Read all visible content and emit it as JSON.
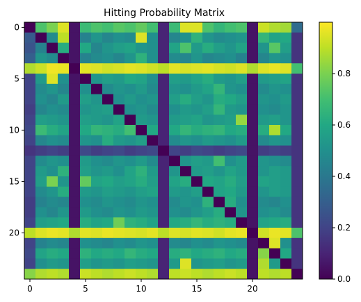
{
  "chart_data": {
    "type": "heatmap",
    "title": "Hitting Probability Matrix",
    "xlabel": "",
    "ylabel": "",
    "size": 25,
    "x_ticks": [
      0,
      5,
      10,
      15,
      20
    ],
    "y_ticks": [
      0,
      5,
      10,
      15,
      20
    ],
    "colormap": "viridis",
    "colorbar": {
      "min": 0.0,
      "max": 1.0,
      "ticks": [
        0.0,
        0.2,
        0.4,
        0.6,
        0.8
      ],
      "tick_labels": [
        "0.0",
        "0.2",
        "0.4",
        "0.6",
        "0.8"
      ]
    },
    "grid": false,
    "low_states": [
      4,
      12,
      20,
      24
    ],
    "high_states": [
      4,
      20,
      24
    ],
    "values": [
      [
        0.0,
        0.72,
        0.8,
        0.95,
        0.05,
        0.68,
        0.72,
        0.7,
        0.74,
        0.72,
        0.76,
        0.7,
        0.1,
        0.68,
        0.95,
        0.95,
        0.72,
        0.66,
        0.7,
        0.72,
        0.05,
        0.92,
        0.88,
        0.86,
        0.35
      ],
      [
        0.28,
        0.0,
        0.48,
        0.9,
        0.05,
        0.44,
        0.52,
        0.46,
        0.5,
        0.48,
        0.95,
        0.5,
        0.1,
        0.46,
        0.5,
        0.64,
        0.52,
        0.48,
        0.5,
        0.52,
        0.05,
        0.66,
        0.58,
        0.6,
        0.15
      ],
      [
        0.26,
        0.44,
        0.0,
        0.62,
        0.05,
        0.6,
        0.46,
        0.52,
        0.56,
        0.58,
        0.52,
        0.5,
        0.1,
        0.58,
        0.72,
        0.54,
        0.62,
        0.56,
        0.52,
        0.58,
        0.05,
        0.52,
        0.74,
        0.56,
        0.15
      ],
      [
        0.3,
        0.52,
        0.48,
        0.0,
        0.05,
        0.44,
        0.48,
        0.5,
        0.46,
        0.52,
        0.64,
        0.5,
        0.1,
        0.48,
        0.46,
        0.52,
        0.46,
        0.48,
        0.5,
        0.44,
        0.05,
        0.46,
        0.52,
        0.5,
        0.15
      ],
      [
        0.88,
        0.92,
        0.98,
        0.97,
        0.0,
        0.96,
        0.95,
        0.93,
        0.94,
        0.96,
        0.95,
        0.93,
        0.9,
        0.96,
        0.94,
        0.95,
        0.96,
        0.94,
        0.93,
        0.95,
        0.88,
        0.95,
        0.97,
        0.95,
        0.7
      ],
      [
        0.2,
        0.54,
        0.95,
        0.5,
        0.05,
        0.0,
        0.52,
        0.56,
        0.54,
        0.6,
        0.58,
        0.5,
        0.1,
        0.56,
        0.54,
        0.58,
        0.62,
        0.54,
        0.52,
        0.56,
        0.05,
        0.54,
        0.56,
        0.58,
        0.15
      ],
      [
        0.2,
        0.48,
        0.52,
        0.46,
        0.05,
        0.5,
        0.0,
        0.48,
        0.52,
        0.5,
        0.54,
        0.48,
        0.1,
        0.52,
        0.5,
        0.54,
        0.58,
        0.66,
        0.52,
        0.5,
        0.05,
        0.48,
        0.52,
        0.5,
        0.15
      ],
      [
        0.2,
        0.5,
        0.46,
        0.54,
        0.05,
        0.56,
        0.52,
        0.0,
        0.5,
        0.54,
        0.5,
        0.52,
        0.1,
        0.56,
        0.62,
        0.56,
        0.52,
        0.62,
        0.6,
        0.56,
        0.05,
        0.52,
        0.5,
        0.54,
        0.15
      ],
      [
        0.18,
        0.46,
        0.5,
        0.48,
        0.05,
        0.52,
        0.54,
        0.56,
        0.0,
        0.5,
        0.52,
        0.48,
        0.1,
        0.5,
        0.54,
        0.52,
        0.56,
        0.66,
        0.54,
        0.52,
        0.05,
        0.5,
        0.48,
        0.52,
        0.15
      ],
      [
        0.2,
        0.56,
        0.54,
        0.52,
        0.05,
        0.56,
        0.54,
        0.52,
        0.58,
        0.0,
        0.54,
        0.52,
        0.1,
        0.54,
        0.56,
        0.58,
        0.52,
        0.54,
        0.56,
        0.84,
        0.05,
        0.54,
        0.56,
        0.52,
        0.15
      ],
      [
        0.22,
        0.68,
        0.62,
        0.58,
        0.05,
        0.6,
        0.66,
        0.64,
        0.62,
        0.7,
        0.0,
        0.6,
        0.1,
        0.6,
        0.66,
        0.62,
        0.64,
        0.66,
        0.6,
        0.62,
        0.05,
        0.62,
        0.88,
        0.6,
        0.15
      ],
      [
        0.2,
        0.46,
        0.5,
        0.48,
        0.05,
        0.52,
        0.5,
        0.62,
        0.54,
        0.52,
        0.56,
        0.0,
        0.1,
        0.48,
        0.52,
        0.5,
        0.54,
        0.52,
        0.5,
        0.54,
        0.05,
        0.48,
        0.52,
        0.5,
        0.15
      ],
      [
        0.15,
        0.18,
        0.2,
        0.18,
        0.05,
        0.22,
        0.18,
        0.2,
        0.22,
        0.18,
        0.2,
        0.22,
        0.0,
        0.2,
        0.18,
        0.22,
        0.2,
        0.18,
        0.2,
        0.22,
        0.05,
        0.18,
        0.2,
        0.18,
        0.15
      ],
      [
        0.2,
        0.48,
        0.52,
        0.5,
        0.05,
        0.54,
        0.5,
        0.48,
        0.52,
        0.5,
        0.54,
        0.48,
        0.1,
        0.0,
        0.52,
        0.56,
        0.54,
        0.7,
        0.5,
        0.54,
        0.05,
        0.52,
        0.5,
        0.48,
        0.15
      ],
      [
        0.2,
        0.54,
        0.5,
        0.64,
        0.05,
        0.56,
        0.52,
        0.54,
        0.5,
        0.58,
        0.64,
        0.54,
        0.1,
        0.52,
        0.0,
        0.54,
        0.56,
        0.52,
        0.58,
        0.54,
        0.05,
        0.52,
        0.56,
        0.54,
        0.15
      ],
      [
        0.2,
        0.56,
        0.8,
        0.52,
        0.05,
        0.76,
        0.58,
        0.6,
        0.56,
        0.58,
        0.62,
        0.56,
        0.1,
        0.58,
        0.62,
        0.0,
        0.6,
        0.58,
        0.62,
        0.56,
        0.05,
        0.58,
        0.56,
        0.54,
        0.15
      ],
      [
        0.2,
        0.48,
        0.52,
        0.62,
        0.05,
        0.54,
        0.52,
        0.56,
        0.54,
        0.52,
        0.56,
        0.58,
        0.1,
        0.54,
        0.52,
        0.56,
        0.0,
        0.58,
        0.6,
        0.54,
        0.05,
        0.52,
        0.56,
        0.54,
        0.15
      ],
      [
        0.18,
        0.44,
        0.48,
        0.46,
        0.05,
        0.5,
        0.48,
        0.52,
        0.5,
        0.48,
        0.52,
        0.5,
        0.1,
        0.48,
        0.52,
        0.5,
        0.64,
        0.0,
        0.62,
        0.5,
        0.05,
        0.48,
        0.46,
        0.5,
        0.15
      ],
      [
        0.18,
        0.5,
        0.46,
        0.52,
        0.05,
        0.54,
        0.5,
        0.48,
        0.52,
        0.5,
        0.54,
        0.52,
        0.1,
        0.5,
        0.48,
        0.52,
        0.56,
        0.62,
        0.0,
        0.52,
        0.05,
        0.5,
        0.52,
        0.48,
        0.15
      ],
      [
        0.2,
        0.56,
        0.58,
        0.6,
        0.05,
        0.62,
        0.58,
        0.6,
        0.78,
        0.64,
        0.62,
        0.58,
        0.1,
        0.6,
        0.62,
        0.66,
        0.62,
        0.64,
        0.62,
        0.0,
        0.05,
        0.58,
        0.6,
        0.62,
        0.15
      ],
      [
        0.9,
        0.95,
        0.97,
        0.96,
        0.88,
        0.96,
        0.95,
        0.97,
        0.96,
        0.95,
        0.94,
        0.96,
        0.9,
        0.95,
        0.94,
        0.96,
        0.95,
        0.93,
        0.96,
        0.97,
        0.0,
        0.93,
        0.97,
        0.96,
        0.72
      ],
      [
        0.2,
        0.44,
        0.48,
        0.46,
        0.05,
        0.5,
        0.48,
        0.46,
        0.5,
        0.48,
        0.52,
        0.5,
        0.1,
        0.48,
        0.46,
        0.5,
        0.48,
        0.52,
        0.5,
        0.48,
        0.05,
        0.0,
        0.95,
        0.5,
        0.15
      ],
      [
        0.22,
        0.58,
        0.62,
        0.6,
        0.05,
        0.64,
        0.6,
        0.62,
        0.6,
        0.66,
        0.62,
        0.6,
        0.1,
        0.62,
        0.64,
        0.6,
        0.62,
        0.64,
        0.6,
        0.62,
        0.05,
        0.82,
        0.0,
        0.6,
        0.15
      ],
      [
        0.2,
        0.5,
        0.54,
        0.52,
        0.05,
        0.56,
        0.52,
        0.54,
        0.52,
        0.56,
        0.54,
        0.52,
        0.1,
        0.54,
        0.95,
        0.52,
        0.54,
        0.56,
        0.52,
        0.54,
        0.05,
        0.88,
        0.54,
        0.0,
        0.15
      ],
      [
        0.82,
        0.88,
        0.9,
        0.88,
        0.05,
        0.92,
        0.9,
        0.88,
        0.9,
        0.92,
        0.9,
        0.88,
        0.1,
        0.9,
        0.92,
        0.9,
        0.88,
        0.9,
        0.92,
        0.9,
        0.05,
        0.9,
        0.88,
        0.9,
        0.0
      ]
    ]
  }
}
